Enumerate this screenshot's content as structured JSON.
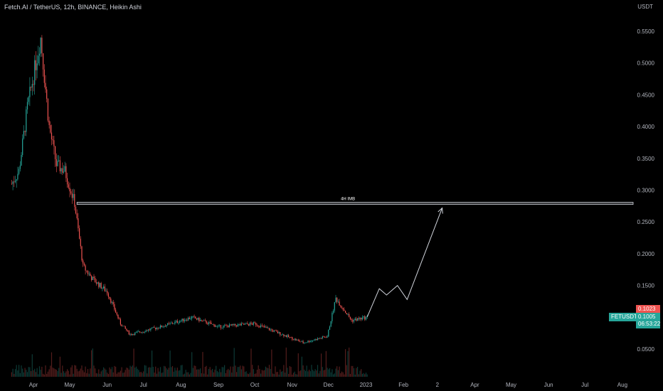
{
  "header": {
    "title": "Fetch.AI / TetherUS, 12h, BINANCE, Heikin Ashi",
    "unit": "USDT"
  },
  "colors": {
    "background": "#000000",
    "bull": "#26a69a",
    "bear": "#ef5350",
    "annotation": "#d1d4dc"
  },
  "chart_data": {
    "type": "candlestick",
    "title": "Fetch.AI / TetherUS, 12h, BINANCE, Heikin Ashi",
    "y_axis": {
      "ticks": [
        "0.5500",
        "0.5000",
        "0.4500",
        "0.4000",
        "0.3500",
        "0.3000",
        "0.2500",
        "0.2000",
        "0.1500",
        "0.1000",
        "0.0500"
      ],
      "range": [
        0.0,
        0.59
      ]
    },
    "x_axis": {
      "ticks": [
        "Apr",
        "May",
        "Jun",
        "Jul",
        "Aug",
        "Sep",
        "Oct",
        "Nov",
        "Dec",
        "2023",
        "Feb",
        "2",
        "Apr",
        "May",
        "Jun",
        "Jul",
        "Aug"
      ]
    },
    "price_path": [
      {
        "date": "2022-03-14",
        "price": 0.31
      },
      {
        "date": "2022-03-20",
        "price": 0.33
      },
      {
        "date": "2022-03-27",
        "price": 0.43
      },
      {
        "date": "2022-04-03",
        "price": 0.5
      },
      {
        "date": "2022-04-07",
        "price": 0.54
      },
      {
        "date": "2022-04-14",
        "price": 0.4
      },
      {
        "date": "2022-04-20",
        "price": 0.34
      },
      {
        "date": "2022-04-27",
        "price": 0.33
      },
      {
        "date": "2022-05-05",
        "price": 0.28
      },
      {
        "date": "2022-05-12",
        "price": 0.18
      },
      {
        "date": "2022-05-20",
        "price": 0.16
      },
      {
        "date": "2022-06-01",
        "price": 0.14
      },
      {
        "date": "2022-06-12",
        "price": 0.09
      },
      {
        "date": "2022-06-20",
        "price": 0.073
      },
      {
        "date": "2022-07-15",
        "price": 0.085
      },
      {
        "date": "2022-08-10",
        "price": 0.1
      },
      {
        "date": "2022-09-01",
        "price": 0.085
      },
      {
        "date": "2022-10-01",
        "price": 0.09
      },
      {
        "date": "2022-11-10",
        "price": 0.06
      },
      {
        "date": "2022-11-30",
        "price": 0.07
      },
      {
        "date": "2022-12-07",
        "price": 0.13
      },
      {
        "date": "2022-12-20",
        "price": 0.095
      },
      {
        "date": "2023-01-02",
        "price": 0.1
      }
    ],
    "projection_path": [
      {
        "date": "2023-01-02",
        "price": 0.1005
      },
      {
        "date": "2023-01-12",
        "price": 0.145
      },
      {
        "date": "2023-01-18",
        "price": 0.135
      },
      {
        "date": "2023-01-27",
        "price": 0.15
      },
      {
        "date": "2023-02-04",
        "price": 0.128
      },
      {
        "date": "2023-03-05",
        "price": 0.272
      }
    ],
    "zone": {
      "label": "4H IMB",
      "top": 0.281,
      "bottom": 0.2775,
      "from": "2022-05-07"
    },
    "last_price": {
      "symbol": "FETUSDT",
      "high_label": "0.1023",
      "price_label": "0.1005",
      "countdown": "06:53:22"
    }
  }
}
